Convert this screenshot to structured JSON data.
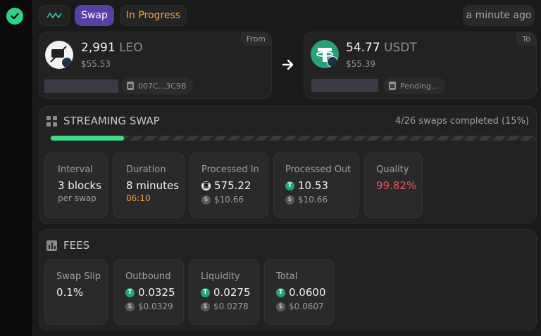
{
  "header": {
    "swap_label": "Swap",
    "status_label": "In Progress",
    "time_label": "a minute ago"
  },
  "from": {
    "tag": "From",
    "amount": "2,991",
    "asset": "LEO",
    "usd": "$55.53",
    "tx": "007C...3C9B"
  },
  "to": {
    "tag": "To",
    "amount": "54.77",
    "asset": "USDT",
    "usd": "$55.39",
    "tx": "Pending..."
  },
  "streaming": {
    "title": "STREAMING SWAP",
    "summary": "4/26 swaps completed (15%)",
    "progress": 0.15,
    "stats": {
      "interval": {
        "label": "Interval",
        "value": "3 blocks",
        "sub": "per swap"
      },
      "duration": {
        "label": "Duration",
        "value": "8 minutes",
        "sub": "06:10"
      },
      "processed_in": {
        "label": "Processed In",
        "value": "575.22",
        "sub": "$10.66"
      },
      "processed_out": {
        "label": "Processed Out",
        "value": "10.53",
        "sub": "$10.66"
      },
      "quality": {
        "label": "Quality",
        "value": "99.82%"
      }
    }
  },
  "fees": {
    "title": "FEES",
    "swap_slip": {
      "label": "Swap Slip",
      "value": "0.1%"
    },
    "outbound": {
      "label": "Outbound",
      "value": "0.0325",
      "sub": "$0.0329"
    },
    "liquidity": {
      "label": "Liquidity",
      "value": "0.0275",
      "sub": "$0.0278"
    },
    "total": {
      "label": "Total",
      "value": "0.0600",
      "sub": "$0.0607"
    }
  },
  "colors": {
    "accent_green": "#3ddc8a",
    "swap_purple": "#5b3fa8",
    "status_orange": "#f0a34a",
    "quality_red": "#ef4f5f",
    "tether_green": "#26a17b"
  }
}
